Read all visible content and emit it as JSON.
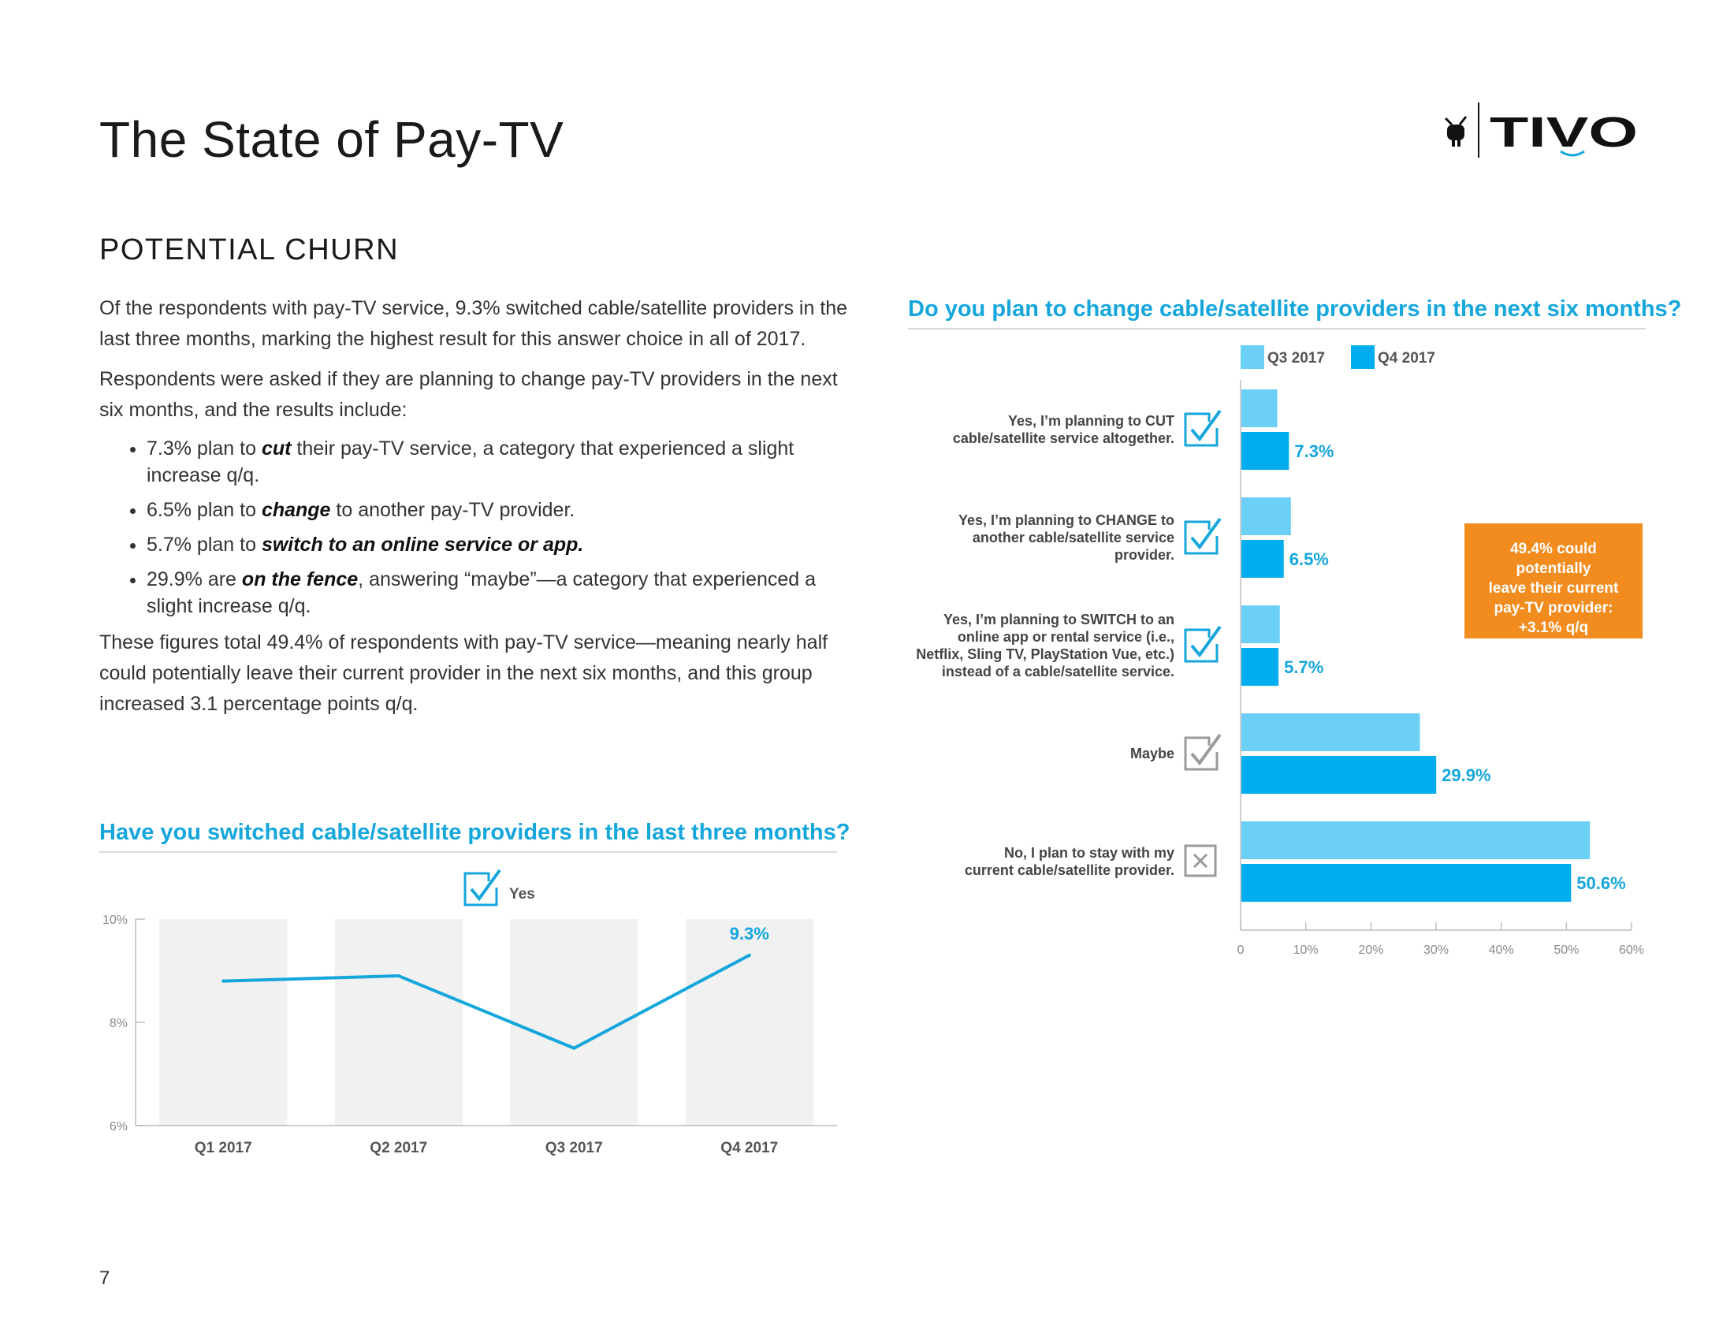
{
  "page_title": "The State of Pay-TV",
  "logo_text": "TiVo",
  "section_title": "POTENTIAL CHURN",
  "body": {
    "para1": "Of the respondents with pay-TV service, 9.3% switched cable/satellite providers in the last three months, marking the highest result for this answer choice in all of 2017.",
    "para2": "Respondents were asked if they are planning to change pay-TV providers in the next six months, and the results include:",
    "bullets": [
      {
        "pre": "7.3% plan to ",
        "em": "cut",
        "post": " their pay-TV service, a category that experienced a slight increase q/q."
      },
      {
        "pre": "6.5% plan to ",
        "em": "change",
        "post": " to another pay-TV provider."
      },
      {
        "pre": "5.7% plan to ",
        "em": "switch to an online service or app.",
        "post": ""
      },
      {
        "pre": "29.9% are ",
        "em": "on the fence",
        "post": ", answering “maybe”—a category that experienced a slight increase q/q."
      }
    ],
    "para3": "These figures total 49.4% of respondents with pay-TV service—meaning nearly half could potentially leave their current provider in the next six months, and this group increased 3.1 percentage points q/q."
  },
  "callout": {
    "lines": [
      "49.4% could potentially",
      "leave their current",
      "pay-TV provider:",
      "+3.1% q/q"
    ]
  },
  "page_number": "7",
  "colors": {
    "accent": "#15a6dc",
    "q3": "#6ccff6",
    "q4": "#00aeef",
    "callout": "#f28c1e",
    "band": "#f1f1f1"
  },
  "chart_data": [
    {
      "type": "line",
      "title": "Have you switched cable/satellite providers in the last three months?",
      "legend": "Yes",
      "legend_icon": "checkbox-check-icon",
      "categories": [
        "Q1 2017",
        "Q2 2017",
        "Q3 2017",
        "Q4 2017"
      ],
      "series": [
        {
          "name": "Yes",
          "values": [
            8.8,
            8.9,
            7.5,
            9.3
          ]
        }
      ],
      "data_labels": [
        {
          "index": 3,
          "text": "9.3%"
        }
      ],
      "ylim": [
        6,
        10
      ],
      "yticks": [
        {
          "v": 6,
          "label": "6%"
        },
        {
          "v": 8,
          "label": "8%"
        },
        {
          "v": 10,
          "label": "10%"
        }
      ],
      "xlabel": "",
      "ylabel": ""
    },
    {
      "type": "bar",
      "orientation": "horizontal",
      "title": "Do you plan to change cable/satellite providers in the next six months?",
      "categories": [
        {
          "lines": [
            "Yes, I’m planning to CUT",
            "cable/satellite service altogether."
          ],
          "icon": "checkbox-check-icon"
        },
        {
          "lines": [
            "Yes, I’m planning to CHANGE to",
            "another cable/satellite service",
            "provider."
          ],
          "icon": "checkbox-check-icon"
        },
        {
          "lines": [
            "Yes, I’m planning to SWITCH to an",
            "online app or rental service (i.e.,",
            "Netflix, Sling TV, PlayStation Vue, etc.)",
            "instead of a cable/satellite service."
          ],
          "icon": "checkbox-check-icon"
        },
        {
          "lines": [
            "Maybe"
          ],
          "icon": "checkbox-check-gray-icon"
        },
        {
          "lines": [
            "No, I plan to stay with my",
            "current cable/satellite provider."
          ],
          "icon": "checkbox-x-icon"
        }
      ],
      "series": [
        {
          "name": "Q3 2017",
          "values": [
            5.5,
            7.6,
            5.9,
            27.4,
            53.5
          ]
        },
        {
          "name": "Q4 2017",
          "values": [
            7.3,
            6.5,
            5.7,
            29.9,
            50.6
          ]
        }
      ],
      "data_labels": [
        "7.3%",
        "6.5%",
        "5.7%",
        "29.9%",
        "50.6%"
      ],
      "xlim": [
        0,
        60
      ],
      "xticks": [
        {
          "v": 0,
          "label": "0"
        },
        {
          "v": 10,
          "label": "10%"
        },
        {
          "v": 20,
          "label": "20%"
        },
        {
          "v": 30,
          "label": "30%"
        },
        {
          "v": 40,
          "label": "40%"
        },
        {
          "v": 50,
          "label": "50%"
        },
        {
          "v": 60,
          "label": "60%"
        }
      ],
      "legend_position": "top"
    }
  ]
}
